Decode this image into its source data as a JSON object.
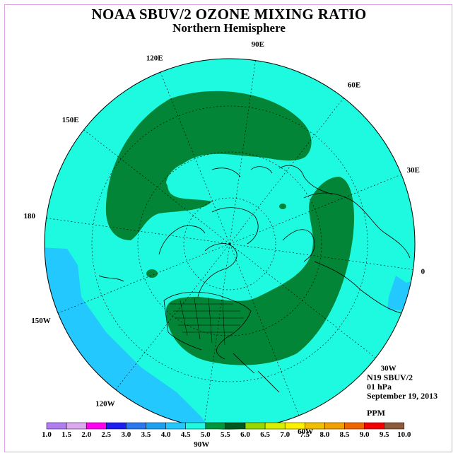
{
  "title": "NOAA SBUV/2 OZONE MIXING RATIO",
  "subtitle": "Northern Hemisphere",
  "info": {
    "satellite": "N19 SBUV/2",
    "level": "01 hPa",
    "date": "September 19, 2013",
    "units": "PPM"
  },
  "longitude_labels": [
    "90E",
    "60E",
    "30E",
    "0",
    "30W",
    "60W",
    "90W",
    "120W",
    "150W",
    "180",
    "150E",
    "120E"
  ],
  "colorbar": {
    "ticks": [
      "1.0",
      "1.5",
      "2.0",
      "2.5",
      "3.0",
      "3.5",
      "4.0",
      "4.5",
      "5.0",
      "5.5",
      "6.0",
      "6.5",
      "7.0",
      "7.5",
      "8.0",
      "8.5",
      "9.0",
      "9.5",
      "10.0"
    ],
    "colors": [
      "#b07ef0",
      "#dca8f0",
      "#ff00f0",
      "#1e1ef0",
      "#2a78f0",
      "#1ea0f0",
      "#23c8ff",
      "#1efae0",
      "#00963c",
      "#005a1e",
      "#96d800",
      "#d8f000",
      "#fff000",
      "#f0c000",
      "#f0a000",
      "#f06400",
      "#f00000",
      "#8c5a3c"
    ]
  },
  "map_colors": {
    "background": "#1efae0",
    "low_region": "#23c8ff",
    "high_region": "#028536",
    "coast": "#000000",
    "grid": "#000000"
  }
}
